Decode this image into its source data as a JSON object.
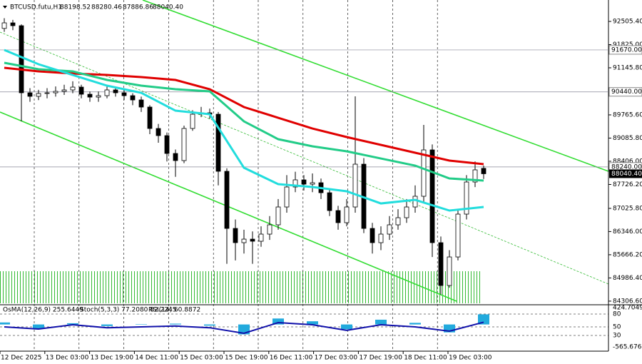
{
  "chart_data": {
    "type": "candlestick",
    "title": "BTCUSD.futu,H1",
    "ohlc_header": [
      "88198.52",
      "88280.46",
      "87886.86",
      "88040.40"
    ],
    "ylim": [
      84242,
      93133
    ],
    "yticks": [
      {
        "value": 92505.4,
        "label": "92505.40"
      },
      {
        "value": 91825,
        "label": "91825.00"
      },
      {
        "value": 91145.8,
        "label": "91145.80"
      },
      {
        "value": 89765.6,
        "label": "89765.60"
      },
      {
        "value": 89085.8,
        "label": "89085.80"
      },
      {
        "value": 88406,
        "label": "88406.00"
      },
      {
        "value": 87726.2,
        "label": "87726.20"
      },
      {
        "value": 87025.8,
        "label": "87025.80"
      },
      {
        "value": 86346,
        "label": "86346.00"
      },
      {
        "value": 85666.2,
        "label": "85666.20"
      },
      {
        "value": 84986.4,
        "label": "84986.40"
      },
      {
        "value": 84306.6,
        "label": "84306.60"
      }
    ],
    "levels": [
      {
        "value": 91670,
        "label": "91670.00"
      },
      {
        "value": 90440,
        "label": "90440.00"
      },
      {
        "value": 88240,
        "label": "88240.00"
      }
    ],
    "last_price": {
      "value": 88040.4,
      "label": "88040.40"
    },
    "xticks": [
      "12 Dec 2025",
      "13 Dec 03:00",
      "13 Dec 19:00",
      "14 Dec 11:00",
      "15 Dec 03:00",
      "15 Dec 19:00",
      "16 Dec 11:00",
      "17 Dec 03:00",
      "17 Dec 19:00",
      "18 Dec 11:00",
      "19 Dec 03:00"
    ],
    "candles": [
      [
        92300,
        92600,
        92200,
        92463
      ],
      [
        92463,
        92550,
        92250,
        92380
      ],
      [
        92380,
        92420,
        89576,
        90413
      ],
      [
        90413,
        90550,
        90150,
        90309
      ],
      [
        90309,
        90500,
        90200,
        90392
      ],
      [
        90392,
        90550,
        90250,
        90413
      ],
      [
        90413,
        90600,
        90300,
        90455
      ],
      [
        90455,
        90650,
        90350,
        90497
      ],
      [
        90497,
        90750,
        90400,
        90580
      ],
      [
        90580,
        90650,
        90250,
        90371
      ],
      [
        90371,
        90450,
        90150,
        90287
      ],
      [
        90287,
        90450,
        90150,
        90329
      ],
      [
        90329,
        90650,
        90250,
        90497
      ],
      [
        90497,
        90600,
        90300,
        90413
      ],
      [
        90413,
        90500,
        90200,
        90329
      ],
      [
        90329,
        90400,
        90050,
        90204
      ],
      [
        90204,
        90300,
        89850,
        89995
      ],
      [
        89995,
        90050,
        89200,
        89367
      ],
      [
        89367,
        89500,
        88950,
        89158
      ],
      [
        89158,
        89250,
        88400,
        88635
      ],
      [
        88635,
        88750,
        87950,
        88426
      ],
      [
        88426,
        89450,
        88350,
        89368
      ],
      [
        89368,
        89900,
        89300,
        89785
      ],
      [
        89785,
        90000,
        89700,
        89827
      ],
      [
        89827,
        89950,
        89650,
        89785
      ],
      [
        89785,
        89850,
        87700,
        88112
      ],
      [
        88112,
        88200,
        85400,
        86438
      ],
      [
        86438,
        86700,
        85500,
        86020
      ],
      [
        86020,
        86400,
        85700,
        86124
      ],
      [
        86124,
        86350,
        85400,
        86062
      ],
      [
        86062,
        86500,
        85900,
        86271
      ],
      [
        86271,
        86800,
        86100,
        86543
      ],
      [
        86543,
        87300,
        86400,
        87066
      ],
      [
        87066,
        88000,
        86900,
        87652
      ],
      [
        87652,
        88100,
        87500,
        87861
      ],
      [
        87861,
        88000,
        87550,
        87735
      ],
      [
        87735,
        88050,
        87500,
        87777
      ],
      [
        87777,
        87900,
        87300,
        87484
      ],
      [
        87484,
        87600,
        86800,
        86961
      ],
      [
        86961,
        87100,
        86400,
        86606
      ],
      [
        86606,
        87300,
        86500,
        87066
      ],
      [
        87066,
        90309,
        86900,
        88321
      ],
      [
        88321,
        88500,
        86300,
        86438
      ],
      [
        86438,
        86600,
        85700,
        86020
      ],
      [
        86020,
        86500,
        85800,
        86271
      ],
      [
        86271,
        86800,
        86100,
        86543
      ],
      [
        86543,
        87000,
        86400,
        86752
      ],
      [
        86752,
        87300,
        86600,
        87066
      ],
      [
        87066,
        87700,
        86900,
        87380
      ],
      [
        87380,
        89472,
        87200,
        88739
      ],
      [
        88739,
        88900,
        85600,
        86020
      ],
      [
        86020,
        86200,
        84500,
        84765
      ],
      [
        84765,
        85800,
        84700,
        85601
      ],
      [
        85601,
        87000,
        85500,
        86857
      ],
      [
        86857,
        88000,
        86700,
        87798
      ],
      [
        87798,
        88400,
        87650,
        88154
      ],
      [
        88198.52,
        88280.46,
        87886.86,
        88040.4
      ]
    ],
    "moving_averages": [
      {
        "color": "#e00000",
        "x": [
          0,
          4,
          8,
          12,
          16,
          20,
          24,
          28,
          32,
          36,
          40,
          44,
          48,
          52,
          56
        ],
        "values": [
          91145,
          91041,
          90978,
          90936,
          90873,
          90790,
          90518,
          89995,
          89681,
          89367,
          89116,
          88886,
          88656,
          88426,
          88321
        ]
      },
      {
        "color": "#22cc88",
        "x": [
          0,
          4,
          8,
          12,
          16,
          20,
          24,
          28,
          32,
          36,
          40,
          44,
          48,
          52,
          56
        ],
        "values": [
          91292,
          91103,
          91041,
          90790,
          90622,
          90518,
          90455,
          89576,
          89053,
          88844,
          88698,
          88488,
          88279,
          87903,
          87840
        ]
      },
      {
        "color": "#22dddd",
        "x": [
          0,
          4,
          8,
          12,
          16,
          20,
          24,
          28,
          32,
          36,
          40,
          44,
          48,
          52,
          56
        ],
        "values": [
          91668,
          91250,
          90936,
          90622,
          90413,
          89890,
          89785,
          88216,
          87735,
          87652,
          87526,
          87170,
          87275,
          86961,
          87066
        ]
      }
    ],
    "oscillator": {
      "labels": [
        "OsMA(12,26,9) 255.6449",
        "Stoch(5,3,3) 77.2080 82.2245",
        "RSI(14) 60.8872"
      ],
      "ylim": [
        -565.6765,
        424.7049
      ],
      "ticks": [
        {
          "value": 424.7049,
          "label": "424.7049"
        },
        {
          "value": -565.6765,
          "label": "-565.6765"
        }
      ],
      "levels": [
        80,
        50,
        30
      ],
      "x": [
        0,
        4,
        8,
        12,
        16,
        20,
        24,
        28,
        32,
        36,
        40,
        44,
        48,
        52,
        56
      ],
      "osma": [
        50,
        -100,
        30,
        -40,
        10,
        20,
        -30,
        -250,
        150,
        80,
        -120,
        120,
        40,
        -200,
        255.6449
      ],
      "rsi": [
        50,
        45,
        55,
        48,
        50,
        52,
        48,
        35,
        60,
        55,
        42,
        55,
        50,
        40,
        60.8872
      ]
    }
  }
}
